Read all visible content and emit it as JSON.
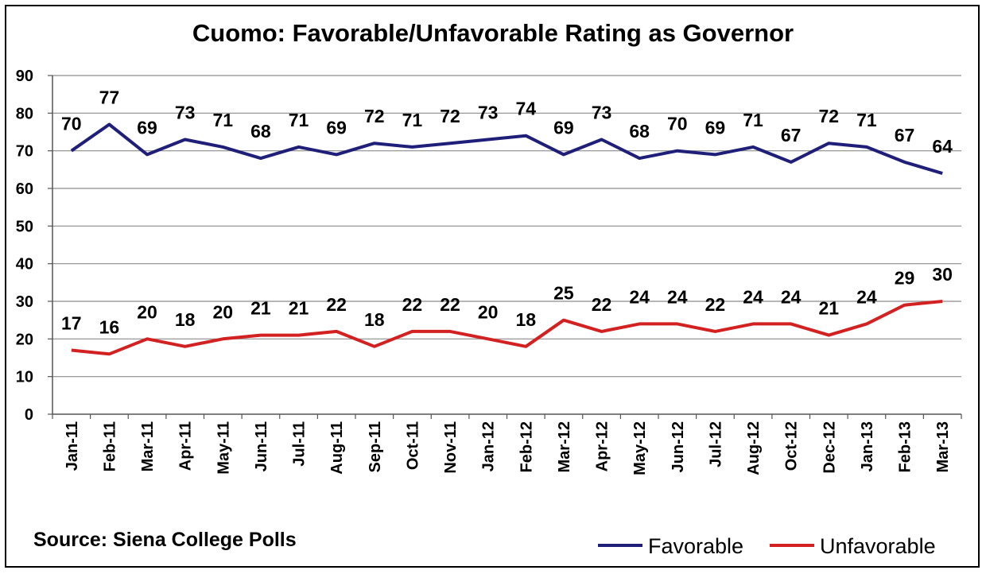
{
  "colors": {
    "favorable": "#1f1f7a",
    "unfavorable": "#d32020",
    "grid": "#8c8c8c"
  },
  "source_text": "Source: Siena College Polls",
  "chart_data": {
    "type": "line",
    "title": "Cuomo: Favorable/Unfavorable Rating as Governor",
    "xlabel": "",
    "ylabel": "",
    "ylim": [
      0,
      90
    ],
    "yticks": [
      0,
      10,
      20,
      30,
      40,
      50,
      60,
      70,
      80,
      90
    ],
    "grid": true,
    "legend_position": "bottom-right",
    "categories": [
      "Jan-11",
      "Feb-11",
      "Mar-11",
      "Apr-11",
      "May-11",
      "Jun-11",
      "Jul-11",
      "Aug-11",
      "Sep-11",
      "Oct-11",
      "Nov-11",
      "Jan-12",
      "Feb-12",
      "Mar-12",
      "Apr-12",
      "May-12",
      "Jun-12",
      "Jul-12",
      "Aug-12",
      "Oct-12",
      "Dec-12",
      "Jan-13",
      "Feb-13",
      "Mar-13"
    ],
    "series": [
      {
        "name": "Favorable",
        "values": [
          70,
          77,
          69,
          73,
          71,
          68,
          71,
          69,
          72,
          71,
          72,
          73,
          74,
          69,
          73,
          68,
          70,
          69,
          71,
          67,
          72,
          71,
          67,
          64
        ]
      },
      {
        "name": "Unfavorable",
        "values": [
          17,
          16,
          20,
          18,
          20,
          21,
          21,
          22,
          18,
          22,
          22,
          20,
          18,
          25,
          22,
          24,
          24,
          22,
          24,
          24,
          21,
          24,
          29,
          30
        ]
      }
    ]
  }
}
